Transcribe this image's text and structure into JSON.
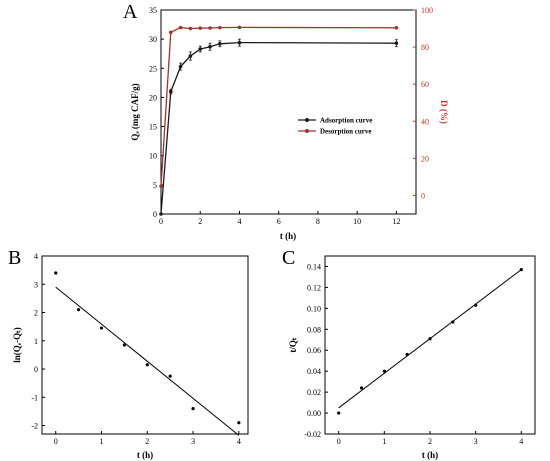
{
  "colors": {
    "adsorption": "#1a1a1a",
    "desorption": "#a0342a",
    "right_axis": "#c0392b"
  },
  "chart_data": [
    {
      "panel": "A",
      "type": "line",
      "xlabel": "t (h)",
      "ylabel_left": "Qₑ (mg CAF/g)",
      "ylabel_right": "D (%)",
      "xlim": [
        0,
        13
      ],
      "ylim_left": [
        0,
        35
      ],
      "ylim_right": [
        -10,
        100
      ],
      "x_ticks": [
        "0",
        "2",
        "4",
        "6",
        "8",
        "10",
        "12"
      ],
      "y_ticks_left": [
        "0",
        "5",
        "10",
        "15",
        "20",
        "25",
        "30",
        "35"
      ],
      "y_ticks_right": [
        "0",
        "20",
        "40",
        "60",
        "80",
        "100"
      ],
      "legend_position": "center-right",
      "series": [
        {
          "name": "Adsorption curve",
          "axis": "left",
          "x": [
            0,
            0.5,
            1,
            1.5,
            2,
            2.5,
            3,
            4,
            12
          ],
          "y": [
            0,
            21.0,
            25.3,
            27.1,
            28.3,
            28.7,
            29.2,
            29.4,
            29.3
          ],
          "err": [
            0,
            0.4,
            0.6,
            0.7,
            0.5,
            0.6,
            0.5,
            0.6,
            0.6
          ]
        },
        {
          "name": "Desorption curve",
          "axis": "right",
          "x": [
            0,
            0.5,
            1,
            1.5,
            2,
            2.5,
            3,
            4,
            12
          ],
          "y": [
            5,
            88,
            90.5,
            90,
            90.2,
            90.3,
            90.5,
            90.6,
            90.4
          ]
        }
      ]
    },
    {
      "panel": "B",
      "type": "scatter",
      "xlabel": "t (h)",
      "ylabel": "ln(Qₑ-Qₜ)",
      "xlim": [
        -0.3,
        4.2
      ],
      "ylim": [
        -2.3,
        4
      ],
      "x_ticks": [
        "0",
        "1",
        "2",
        "3",
        "4"
      ],
      "y_ticks": [
        "-2",
        "-1",
        "0",
        "1",
        "2",
        "3",
        "4"
      ],
      "points": {
        "x": [
          0,
          0.5,
          1,
          1.5,
          2,
          2.5,
          3,
          4
        ],
        "y": [
          3.4,
          2.1,
          1.45,
          0.85,
          0.15,
          -0.25,
          -1.4,
          -1.9
        ]
      },
      "fit_line": {
        "x": [
          0,
          4
        ],
        "y": [
          2.9,
          -2.35
        ]
      }
    },
    {
      "panel": "C",
      "type": "scatter",
      "xlabel": "t (h)",
      "ylabel": "t/Qₜ",
      "xlim": [
        -0.3,
        4.3
      ],
      "ylim": [
        -0.02,
        0.15
      ],
      "x_ticks": [
        "0",
        "1",
        "2",
        "3",
        "4"
      ],
      "y_ticks": [
        "-0.02",
        "0.00",
        "0.02",
        "0.04",
        "0.06",
        "0.08",
        "0.10",
        "0.12",
        "0.14"
      ],
      "points": {
        "x": [
          0,
          0.5,
          1,
          1.5,
          2,
          2.5,
          3,
          4
        ],
        "y": [
          0.0,
          0.024,
          0.04,
          0.056,
          0.071,
          0.087,
          0.103,
          0.137
        ]
      },
      "fit_line": {
        "x": [
          0,
          4
        ],
        "y": [
          0.005,
          0.137
        ]
      }
    }
  ]
}
